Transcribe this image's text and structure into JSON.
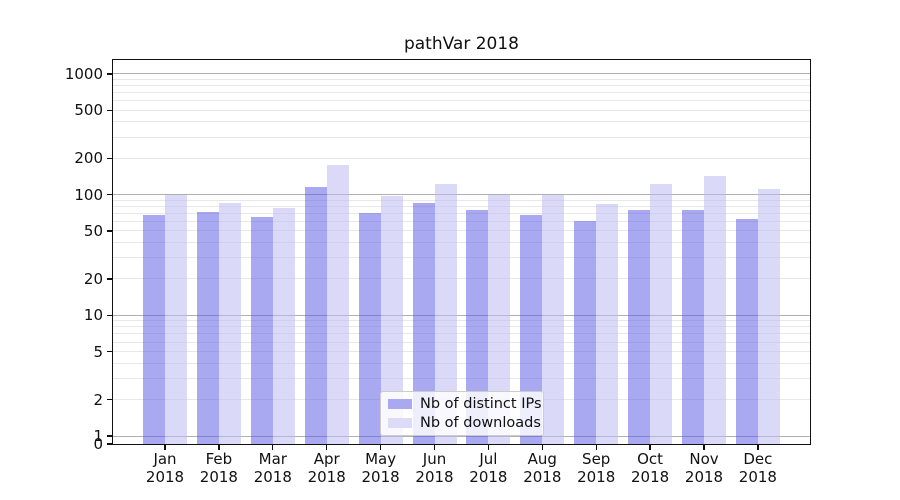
{
  "figure": {
    "title": "pathVar 2018"
  },
  "legend": {
    "items": [
      {
        "label": "Nb of distinct IPs",
        "swatch_color": "#a9a9f1"
      },
      {
        "label": "Nb of downloads",
        "swatch_color": "#dcdcf8"
      }
    ]
  },
  "colors": {
    "bar_ips": "rgba(84,84,227,0.5)",
    "bar_downloads": "rgba(187,187,242,0.55)",
    "grid_major": "#b0b0b0",
    "grid_minor": "#e8e8e8",
    "axis": "#111111"
  },
  "chart_data": {
    "type": "bar",
    "title": "pathVar 2018",
    "categories": [
      "Jan 2018",
      "Feb 2018",
      "Mar 2018",
      "Apr 2018",
      "May 2018",
      "Jun 2018",
      "Jul 2018",
      "Aug 2018",
      "Sep 2018",
      "Oct 2018",
      "Nov 2018",
      "Dec 2018"
    ],
    "series": [
      {
        "name": "Nb of distinct IPs",
        "values": [
          68,
          72,
          65,
          116,
          70,
          86,
          75,
          68,
          60,
          74,
          74,
          63
        ]
      },
      {
        "name": "Nb of downloads",
        "values": [
          100,
          85,
          78,
          176,
          98,
          122,
          99,
          100,
          84,
          122,
          143,
          111
        ]
      }
    ],
    "xlabel": "",
    "ylabel": "",
    "yscale": "log (with 0 baseline)",
    "y_ticks": [
      0,
      1,
      2,
      5,
      10,
      20,
      50,
      100,
      200,
      500,
      1000
    ],
    "ylim": [
      0,
      1300
    ],
    "grid": "both (major decades darker, log minors lighter)",
    "legend_position": "lower center"
  }
}
